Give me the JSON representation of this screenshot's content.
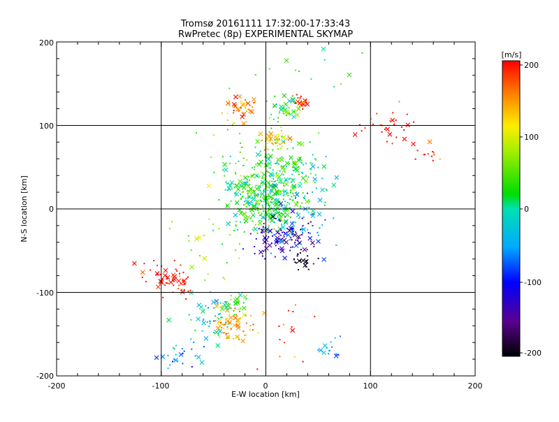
{
  "chart_data": {
    "type": "scatter",
    "title": "Tromsø 20161111 17:32:00-17:33:43",
    "subtitle": "RwPretec (8p) EXPERIMENTAL SKYMAP",
    "xlabel": "E-W location [km]",
    "ylabel": "N-S location [km]",
    "xlim": [
      -200,
      200
    ],
    "ylim": [
      -200,
      200
    ],
    "xticks": [
      "-200",
      "-100",
      "0",
      "100",
      "200"
    ],
    "yticks": [
      "-200",
      "-100",
      "0",
      "100",
      "200"
    ],
    "grid": true,
    "colorbar": {
      "unit": "[m/s]",
      "range": [
        -200,
        200
      ],
      "ticks": [
        "200",
        "100",
        "0",
        "-100",
        "-200"
      ]
    },
    "clusters": [
      {
        "x": 0,
        "y": 5,
        "r": 22,
        "n": 240,
        "v": 20
      },
      {
        "x": 5,
        "y": 40,
        "r": 28,
        "n": 140,
        "v": 25
      },
      {
        "x": -20,
        "y": 30,
        "r": 22,
        "n": 50,
        "v": 10
      },
      {
        "x": 35,
        "y": 40,
        "r": 25,
        "n": 60,
        "v": 0
      },
      {
        "x": 10,
        "y": 83,
        "r": 10,
        "n": 45,
        "v": 120
      },
      {
        "x": -25,
        "y": 120,
        "r": 12,
        "n": 40,
        "v": 160
      },
      {
        "x": 20,
        "y": 120,
        "r": 12,
        "n": 40,
        "v": 25
      },
      {
        "x": 35,
        "y": 128,
        "r": 6,
        "n": 18,
        "v": 200
      },
      {
        "x": 15,
        "y": -35,
        "r": 20,
        "n": 90,
        "v": -150
      },
      {
        "x": 35,
        "y": -62,
        "r": 8,
        "n": 20,
        "v": -200
      },
      {
        "x": 35,
        "y": -20,
        "r": 25,
        "n": 60,
        "v": -60
      },
      {
        "x": -85,
        "y": -85,
        "r": 12,
        "n": 45,
        "v": 200
      },
      {
        "x": -30,
        "y": -140,
        "r": 14,
        "n": 70,
        "v": 140
      },
      {
        "x": -30,
        "y": -115,
        "r": 10,
        "n": 30,
        "v": 40
      },
      {
        "x": -50,
        "y": -130,
        "r": 22,
        "n": 45,
        "v": -20
      },
      {
        "x": 120,
        "y": 100,
        "r": 18,
        "n": 30,
        "v": 200
      },
      {
        "x": 155,
        "y": 65,
        "r": 10,
        "n": 12,
        "v": 200
      },
      {
        "x": -80,
        "y": -170,
        "r": 15,
        "n": 25,
        "v": -40
      },
      {
        "x": 60,
        "y": -165,
        "r": 10,
        "n": 15,
        "v": -40
      },
      {
        "x": 20,
        "y": -150,
        "r": 25,
        "n": 15,
        "v": 200
      },
      {
        "x": -110,
        "y": -75,
        "r": 20,
        "n": 15,
        "v": 200
      },
      {
        "x": -60,
        "y": -50,
        "r": 30,
        "n": 25,
        "v": 60
      },
      {
        "x": 50,
        "y": 170,
        "r": 40,
        "n": 12,
        "v": 40
      },
      {
        "x": -15,
        "y": 65,
        "r": 40,
        "n": 40,
        "v": 60
      }
    ]
  }
}
